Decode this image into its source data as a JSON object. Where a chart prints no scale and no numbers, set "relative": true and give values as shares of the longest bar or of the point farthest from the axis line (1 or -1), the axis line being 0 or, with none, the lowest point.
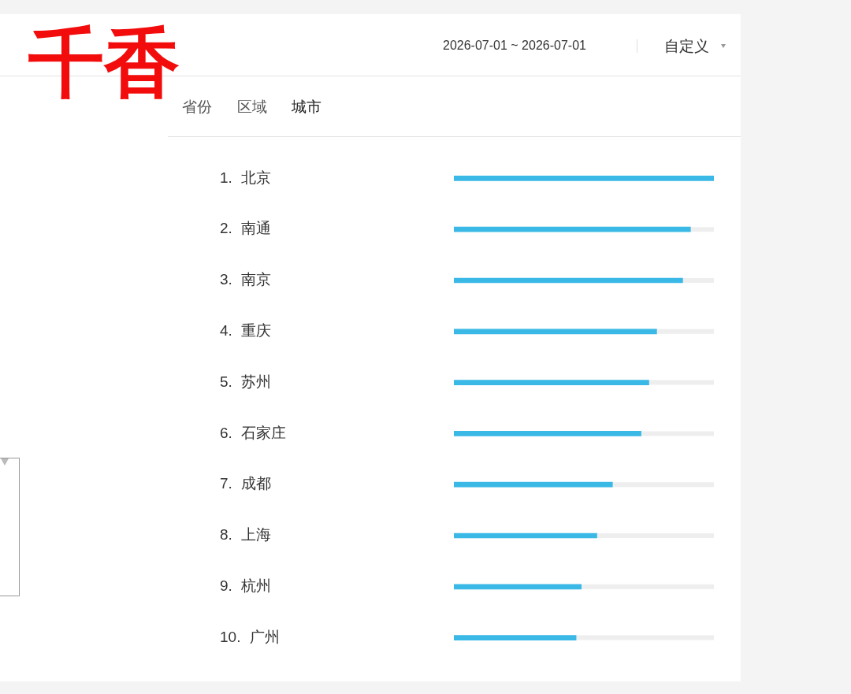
{
  "chart_data": {
    "type": "bar",
    "orientation": "horizontal",
    "relative": true,
    "title": "千香",
    "categories": [
      "1. 北京",
      "2. 南通",
      "3. 南京",
      "4. 重庆",
      "5. 苏州",
      "6. 石家庄",
      "7. 成都",
      "8. 上海",
      "9. 杭州",
      "10. 广州"
    ],
    "values": [
      1,
      0.91,
      0.88,
      0.78,
      0.75,
      0.72,
      0.61,
      0.55,
      0.49,
      0.47
    ],
    "color": "#3bb9e6",
    "annotations": [
      "2026-07-01 ~ 2026-07-01",
      "自定义",
      "省份",
      "区域",
      "城市"
    ]
  }
}
